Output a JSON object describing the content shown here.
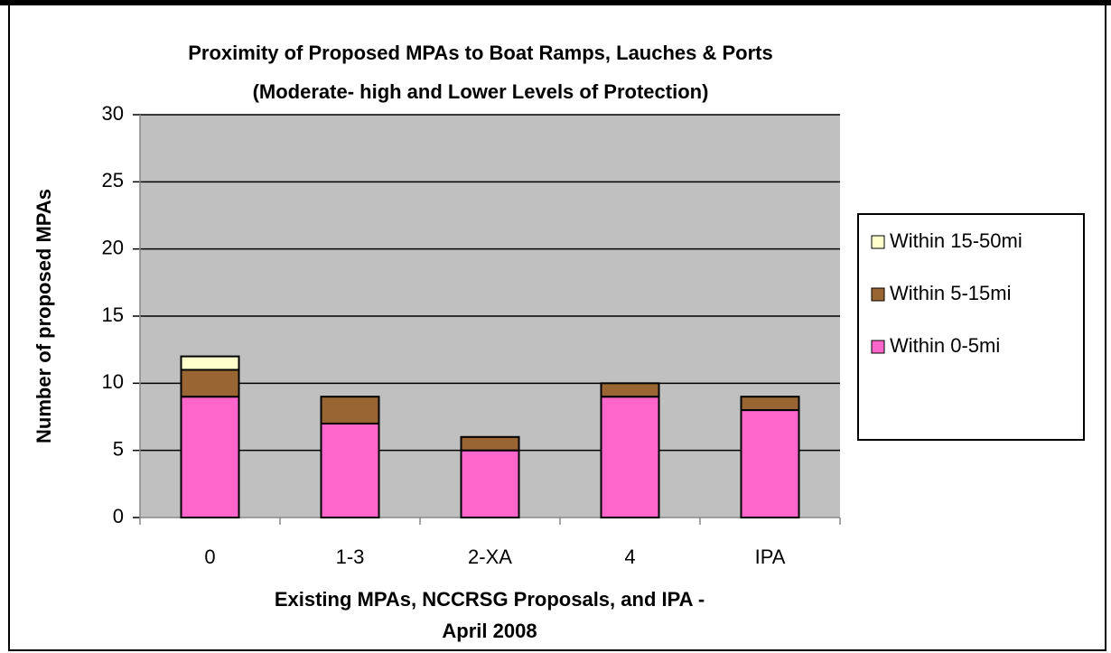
{
  "chart_data": {
    "type": "stacked_bar",
    "title": "Proximity of Proposed MPAs to Boat Ramps, Lauches & Ports",
    "subtitle": "(Moderate- high and Lower Levels of Protection)",
    "x_label": [
      "Existing MPAs, NCCRSG Proposals, and IPA -",
      "April 2008"
    ],
    "y_label": "Number of proposed MPAs",
    "categories": [
      "0",
      "1-3",
      "2-XA",
      "4",
      "IPA"
    ],
    "series": [
      {
        "name": "Within 0-5mi",
        "color": "#ff66cc",
        "values": [
          9,
          7,
          5,
          9,
          8
        ]
      },
      {
        "name": "Within 5-15mi",
        "color": "#996633",
        "values": [
          2,
          2,
          1,
          1,
          1
        ]
      },
      {
        "name": "Within 15-50mi",
        "color": "#ffffcc",
        "values": [
          1,
          0,
          0,
          0,
          0
        ]
      }
    ],
    "ylim": [
      0,
      30
    ],
    "yticks": [
      0,
      5,
      10,
      15,
      20,
      25,
      30
    ],
    "grid": true,
    "plot_background": "#c0c0c0",
    "legend": "right"
  }
}
